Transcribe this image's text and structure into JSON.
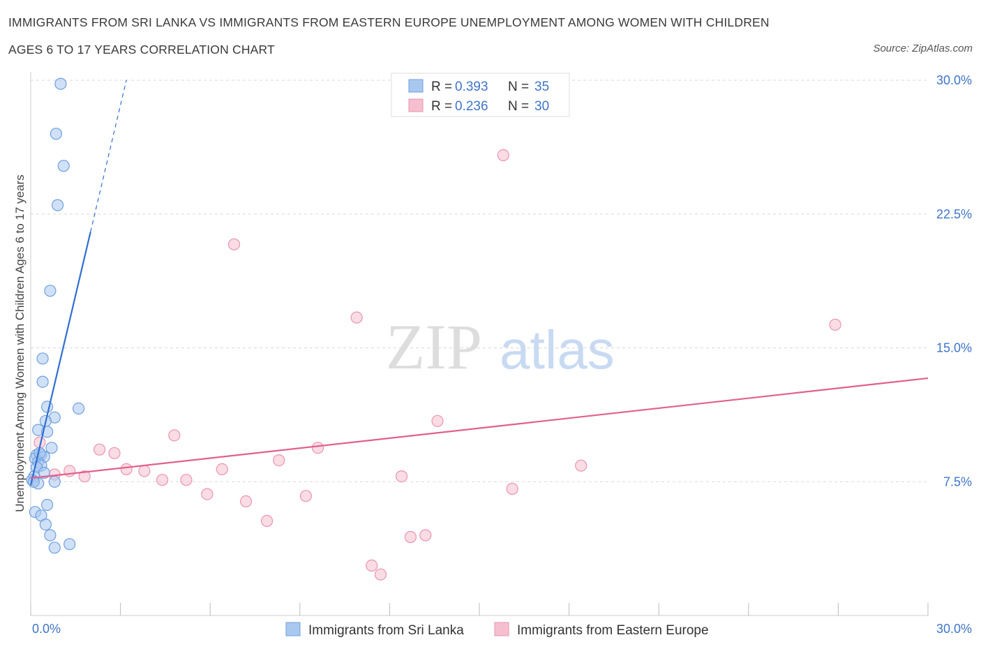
{
  "title_line1": "IMMIGRANTS FROM SRI LANKA VS IMMIGRANTS FROM EASTERN EUROPE UNEMPLOYMENT AMONG WOMEN WITH CHILDREN",
  "title_line2": "AGES 6 TO 17 YEARS CORRELATION CHART",
  "source": "Source: ZipAtlas.com",
  "watermark": {
    "zip": "ZIP",
    "atlas": "atlas"
  },
  "colors": {
    "blue_fill": "#a9c8f0",
    "blue_stroke": "#6f9fde",
    "blue_line": "#2f6fd0",
    "pink_fill": "#f6bfd0",
    "pink_stroke": "#ea93b0",
    "pink_line": "#e0608c",
    "grid": "#d8d8d8",
    "tick_label": "#3f74c8"
  },
  "chart_data": {
    "type": "scatter",
    "title": "IMMIGRANTS FROM SRI LANKA VS IMMIGRANTS FROM EASTERN EUROPE UNEMPLOYMENT AMONG WOMEN WITH CHILDREN AGES 6 TO 17 YEARS CORRELATION CHART",
    "xlabel": "",
    "ylabel": "Unemployment Among Women with Children Ages 6 to 17 years",
    "xlim": [
      0,
      30
    ],
    "ylim": [
      0,
      30
    ],
    "x_tick_labels": [
      "0.0%",
      "30.0%"
    ],
    "y_ticks": [
      7.5,
      15.0,
      22.5,
      30.0
    ],
    "y_tick_labels": [
      "7.5%",
      "15.0%",
      "22.5%",
      "30.0%"
    ],
    "legend_stats": [
      {
        "r_label": "R = ",
        "r": "0.393",
        "n_label": "N = ",
        "n": "35"
      },
      {
        "r_label": "R = ",
        "r": "0.236",
        "n_label": "N = ",
        "n": "30"
      }
    ],
    "series": [
      {
        "name": "Immigrants from Sri Lanka",
        "color": "blue",
        "trend": {
          "x0": 0.0,
          "y0": 7.3,
          "x1": 2.0,
          "y1": 21.5,
          "dash_to_x": 3.2
        },
        "points": [
          [
            1.0,
            29.8
          ],
          [
            0.85,
            27.0
          ],
          [
            1.1,
            25.2
          ],
          [
            0.9,
            23.0
          ],
          [
            0.65,
            18.2
          ],
          [
            0.4,
            14.4
          ],
          [
            0.4,
            13.1
          ],
          [
            0.55,
            11.7
          ],
          [
            1.6,
            11.6
          ],
          [
            0.8,
            11.1
          ],
          [
            0.5,
            10.9
          ],
          [
            0.25,
            10.4
          ],
          [
            0.55,
            10.3
          ],
          [
            0.7,
            9.4
          ],
          [
            0.2,
            9.0
          ],
          [
            0.35,
            9.0
          ],
          [
            0.45,
            8.9
          ],
          [
            0.15,
            8.8
          ],
          [
            0.25,
            8.6
          ],
          [
            0.35,
            8.4
          ],
          [
            0.2,
            8.3
          ],
          [
            0.45,
            8.0
          ],
          [
            0.12,
            7.8
          ],
          [
            0.05,
            7.6
          ],
          [
            0.25,
            7.4
          ],
          [
            0.1,
            7.5
          ],
          [
            0.8,
            7.5
          ],
          [
            0.55,
            6.2
          ],
          [
            0.15,
            5.8
          ],
          [
            0.35,
            5.6
          ],
          [
            0.5,
            5.1
          ],
          [
            0.65,
            4.5
          ],
          [
            1.3,
            4.0
          ],
          [
            0.8,
            3.8
          ],
          [
            0.3,
            9.1
          ]
        ]
      },
      {
        "name": "Immigrants from Eastern Europe",
        "color": "pink",
        "trend": {
          "x0": 0.0,
          "y0": 7.7,
          "x1": 30.0,
          "y1": 13.3
        },
        "points": [
          [
            15.8,
            25.8
          ],
          [
            6.8,
            20.8
          ],
          [
            10.9,
            16.7
          ],
          [
            26.9,
            16.3
          ],
          [
            13.6,
            10.9
          ],
          [
            4.8,
            10.1
          ],
          [
            0.3,
            9.7
          ],
          [
            2.3,
            9.3
          ],
          [
            9.6,
            9.4
          ],
          [
            2.8,
            9.1
          ],
          [
            8.3,
            8.7
          ],
          [
            18.4,
            8.4
          ],
          [
            3.2,
            8.2
          ],
          [
            6.4,
            8.2
          ],
          [
            1.3,
            8.1
          ],
          [
            3.8,
            8.1
          ],
          [
            0.8,
            7.9
          ],
          [
            1.8,
            7.8
          ],
          [
            12.4,
            7.8
          ],
          [
            4.4,
            7.6
          ],
          [
            5.2,
            7.6
          ],
          [
            16.1,
            7.1
          ],
          [
            5.9,
            6.8
          ],
          [
            9.2,
            6.7
          ],
          [
            7.2,
            6.4
          ],
          [
            7.9,
            5.3
          ],
          [
            13.2,
            4.5
          ],
          [
            12.7,
            4.4
          ],
          [
            11.4,
            2.8
          ],
          [
            11.7,
            2.3
          ]
        ]
      }
    ]
  }
}
